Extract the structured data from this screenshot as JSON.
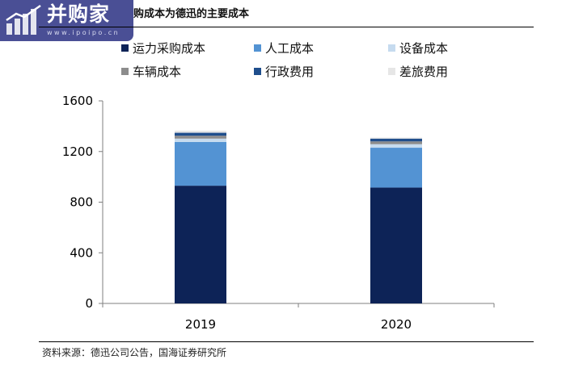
{
  "watermark": {
    "brand": "并购家",
    "url": "www.ipoipo.cn"
  },
  "header": {
    "title": "购成本为德迅的主要成本"
  },
  "footer": {
    "source": "资料来源：德迅公司公告，国海证券研究所"
  },
  "colors": {
    "logo_bg": "#4a4f95",
    "rule": "#000000"
  },
  "chart_data": {
    "type": "bar",
    "stacked": true,
    "title": "",
    "xlabel": "",
    "ylabel": "",
    "categories": [
      "2019",
      "2020"
    ],
    "ylim": [
      0,
      1600
    ],
    "yticks": [
      0,
      400,
      800,
      1200,
      1600
    ],
    "ytick_labels": [
      "0",
      "400",
      "800",
      "1200",
      "1600"
    ],
    "grid": false,
    "legend_placement": "top",
    "series": [
      {
        "name": "运力采购成本",
        "color": "#0d2357",
        "values": [
          930,
          915
        ]
      },
      {
        "name": "人工成本",
        "color": "#5393d3",
        "values": [
          345,
          315
        ]
      },
      {
        "name": "设备成本",
        "color": "#c6dbef",
        "values": [
          27,
          28
        ]
      },
      {
        "name": "车辆成本",
        "color": "#8c8c8c",
        "values": [
          23,
          22
        ]
      },
      {
        "name": "行政费用",
        "color": "#1f4e8c",
        "values": [
          23,
          22
        ]
      },
      {
        "name": "差旅费用",
        "color": "#e6e6e6",
        "values": [
          17,
          8
        ]
      }
    ]
  }
}
